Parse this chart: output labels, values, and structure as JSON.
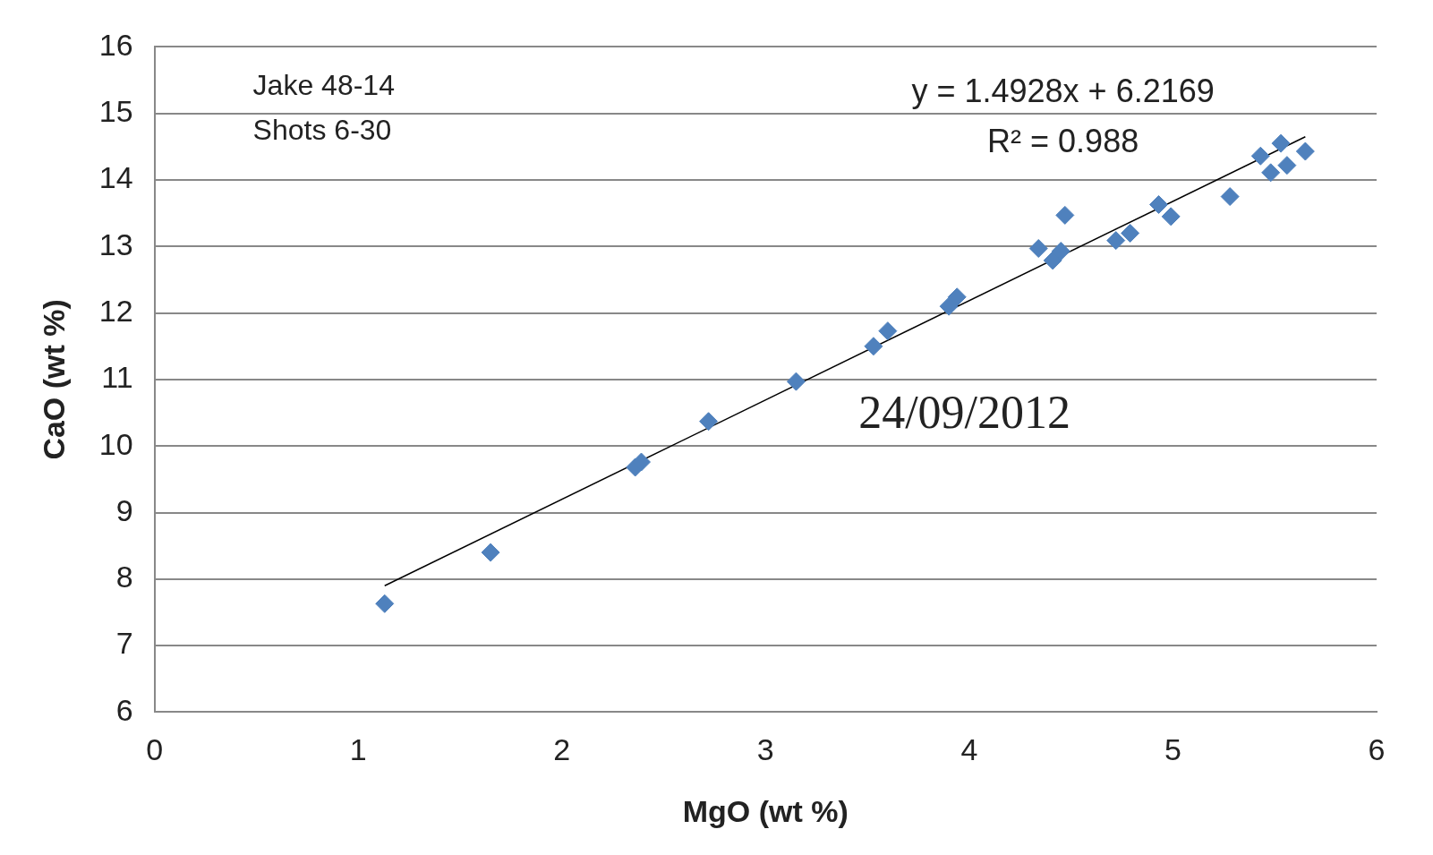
{
  "chart_data": {
    "type": "scatter",
    "xlabel": "MgO (wt %)",
    "ylabel": "CaO (wt %)",
    "xlim": [
      0,
      6
    ],
    "xticks": [
      0,
      1,
      2,
      3,
      4,
      5,
      6
    ],
    "ylim": [
      6,
      16
    ],
    "yticks": [
      6,
      7,
      8,
      9,
      10,
      11,
      12,
      13,
      14,
      15,
      16
    ],
    "grid": "y",
    "legend": false,
    "annotations": [
      "Jake 48-14",
      "Shots 6-30",
      "y = 1.4928x + 6.2169",
      "R² = 0.988",
      "24/09/2012"
    ],
    "series": [
      {
        "color": "#4f81bd",
        "marker": "diamond",
        "x": [
          1.13,
          1.65,
          2.36,
          2.39,
          2.72,
          3.15,
          3.53,
          3.6,
          3.9,
          3.94,
          4.34,
          4.41,
          4.45,
          4.47,
          4.72,
          4.79,
          4.93,
          4.99,
          5.28,
          5.43,
          5.48,
          5.53,
          5.56,
          5.65
        ],
        "values": [
          7.63,
          8.4,
          9.68,
          9.76,
          10.37,
          10.97,
          11.5,
          11.73,
          12.1,
          12.24,
          12.97,
          12.79,
          12.93,
          13.47,
          13.09,
          13.2,
          13.63,
          13.45,
          13.75,
          14.36,
          14.11,
          14.55,
          14.22,
          14.43
        ]
      },
      {
        "type": "line",
        "color": "#000000",
        "marker": "none",
        "x": [
          1.13,
          5.65
        ],
        "values": [
          7.9,
          14.65
        ]
      }
    ]
  }
}
